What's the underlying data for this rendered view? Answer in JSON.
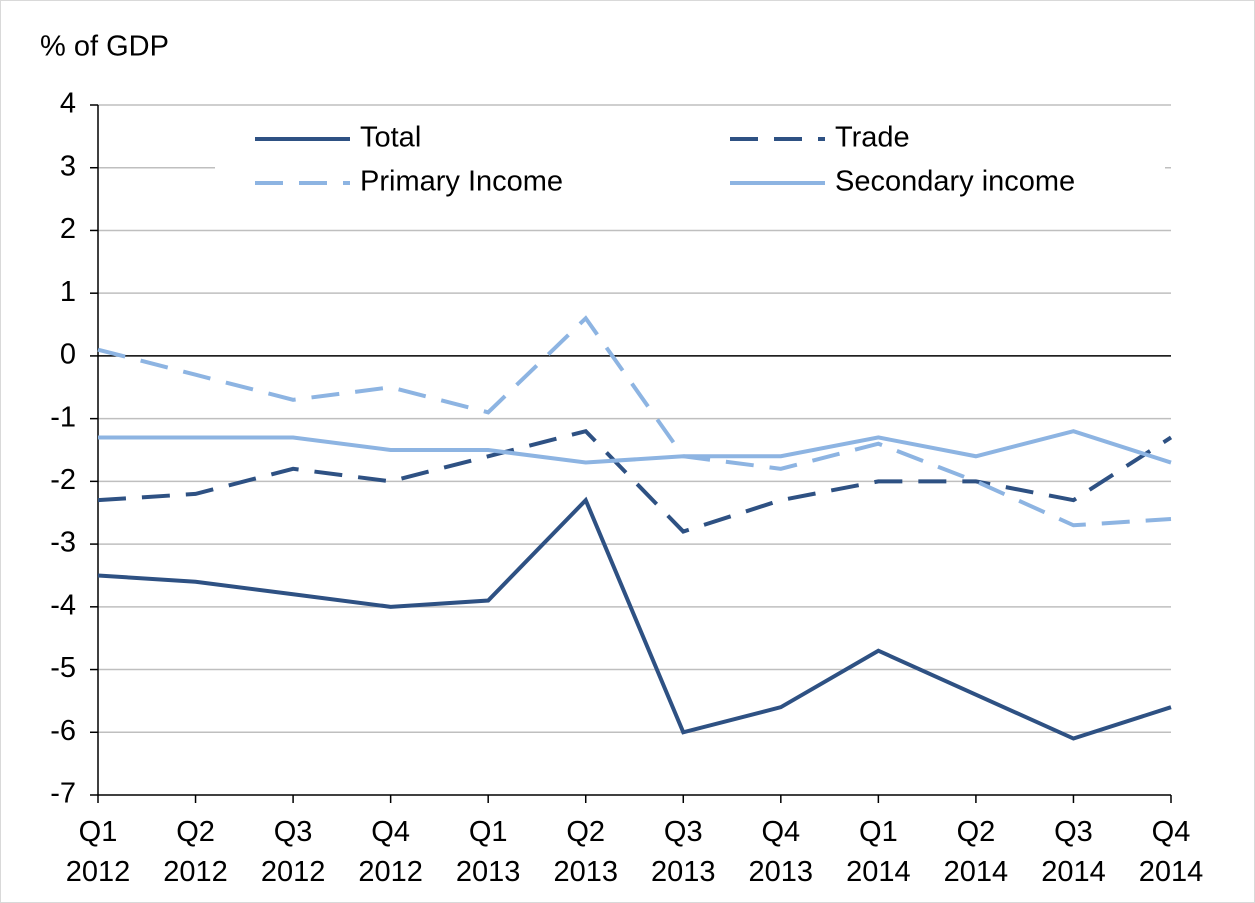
{
  "chart_data": {
    "type": "line",
    "y_axis_label": "% of GDP",
    "categories": [
      "Q1 2012",
      "Q2 2012",
      "Q3 2012",
      "Q4 2012",
      "Q1 2013",
      "Q2 2013",
      "Q3 2013",
      "Q4 2013",
      "Q1 2014",
      "Q2 2014",
      "Q3 2014",
      "Q4 2014"
    ],
    "series": [
      {
        "name": "Total",
        "color": "#2e5183",
        "dashed": false,
        "values": [
          -3.5,
          -3.6,
          -3.8,
          -4.0,
          -3.9,
          -2.3,
          -6.0,
          -5.6,
          -4.7,
          -5.4,
          -6.1,
          -5.6
        ]
      },
      {
        "name": "Trade",
        "color": "#2e5183",
        "dashed": true,
        "values": [
          -2.3,
          -2.2,
          -1.8,
          -2.0,
          -1.6,
          -1.2,
          -2.8,
          -2.3,
          -2.0,
          -2.0,
          -2.3,
          -1.3
        ]
      },
      {
        "name": "Primary Income",
        "color": "#8db4e2",
        "dashed": true,
        "values": [
          0.1,
          -0.3,
          -0.7,
          -0.5,
          -0.9,
          0.6,
          -1.6,
          -1.8,
          -1.4,
          -2.0,
          -2.7,
          -2.6
        ]
      },
      {
        "name": "Secondary income",
        "color": "#8db4e2",
        "dashed": false,
        "values": [
          -1.3,
          -1.3,
          -1.3,
          -1.5,
          -1.5,
          -1.7,
          -1.6,
          -1.6,
          -1.3,
          -1.6,
          -1.2,
          -1.7
        ]
      }
    ],
    "ylim": [
      -7,
      4
    ],
    "yticks": [
      -7,
      -6,
      -5,
      -4,
      -3,
      -2,
      -1,
      0,
      1,
      2,
      3,
      4
    ],
    "grid": true,
    "legend": "top"
  }
}
